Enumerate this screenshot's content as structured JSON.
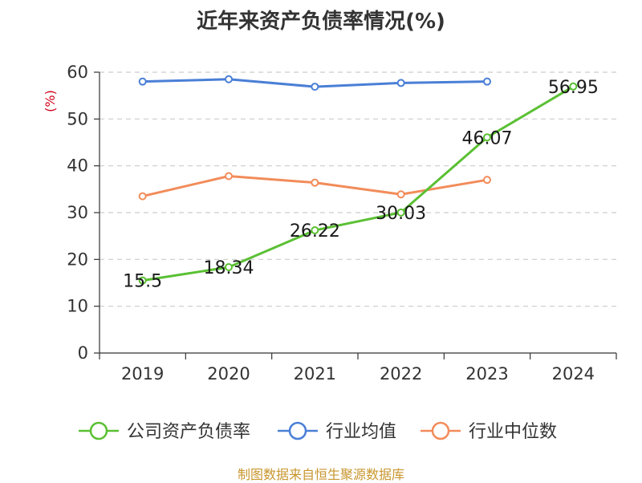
{
  "chart_data": {
    "type": "line",
    "title": "近年来资产负债率情况(%)",
    "ylabel": "(%)",
    "xlabel": "",
    "categories": [
      "2019",
      "2020",
      "2021",
      "2022",
      "2023",
      "2024"
    ],
    "ylim": [
      0,
      60
    ],
    "yticks": [
      0,
      10,
      20,
      30,
      40,
      50,
      60
    ],
    "grid": true,
    "legend_position": "bottom",
    "series": [
      {
        "name": "公司资产负债率",
        "color": "#5ac033",
        "values": [
          15.5,
          18.34,
          26.22,
          30.03,
          46.07,
          56.95
        ],
        "labels": [
          "15.5",
          "18.34",
          "26.22",
          "30.03",
          "46.07",
          "56.95"
        ]
      },
      {
        "name": "行业均值",
        "color": "#4a7fd6",
        "values": [
          58.0,
          58.5,
          56.9,
          57.7,
          58.0,
          null
        ]
      },
      {
        "name": "行业中位数",
        "color": "#f28c5a",
        "values": [
          33.5,
          37.8,
          36.4,
          33.9,
          37.0,
          null
        ]
      }
    ]
  },
  "source": "制图数据来自恒生聚源数据库"
}
